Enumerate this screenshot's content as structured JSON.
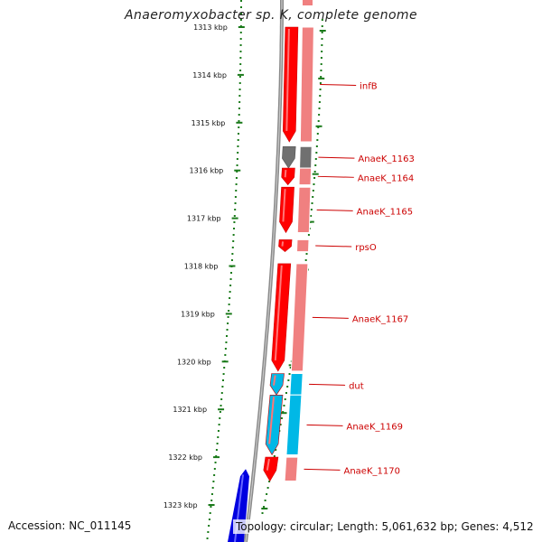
{
  "title": "Anaeromyxobacter sp. K, complete genome",
  "accession": "Accession: NC_011145",
  "topology": "Topology: circular; Length: 5,061,632 bp; Genes: 4,512",
  "colors": {
    "ruler_tick": "#1a7a1a",
    "backbone": "#8a8a8a",
    "gene_red": "#ff0000",
    "gene_dark_red": "#cc0000",
    "gene_pink": "#f08080",
    "gene_gray": "#707070",
    "gene_cyan": "#00b8e6",
    "gene_blue": "#0000e0",
    "label_red": "#cc0000"
  },
  "scale": {
    "unit": "kbp",
    "ticks": [
      "1313 kbp",
      "1314 kbp",
      "1315 kbp",
      "1316 kbp",
      "1317 kbp",
      "1318 kbp",
      "1319 kbp",
      "1320 kbp",
      "1321 kbp",
      "1322 kbp",
      "1323 kbp"
    ]
  },
  "genes": [
    {
      "name": "infB",
      "color": "red",
      "start_kbp": 1312.6,
      "end_kbp": 1315.4
    },
    {
      "name": "AnaeK_1163",
      "color": "gray",
      "start_kbp": 1315.5,
      "end_kbp": 1315.95
    },
    {
      "name": "AnaeK_1164",
      "color": "red",
      "start_kbp": 1315.95,
      "end_kbp": 1316.3
    },
    {
      "name": "AnaeK_1165",
      "color": "red",
      "start_kbp": 1316.35,
      "end_kbp": 1317.3
    },
    {
      "name": "rpsO",
      "color": "red",
      "start_kbp": 1317.45,
      "end_kbp": 1317.7
    },
    {
      "name": "AnaeK_1167",
      "color": "red",
      "start_kbp": 1317.95,
      "end_kbp": 1320.2
    },
    {
      "name": "dut",
      "color": "cyan",
      "start_kbp": 1320.25,
      "end_kbp": 1320.7
    },
    {
      "name": "AnaeK_1169",
      "color": "cyan",
      "start_kbp": 1320.7,
      "end_kbp": 1321.95
    },
    {
      "name": "AnaeK_1170",
      "color": "red",
      "start_kbp": 1322.0,
      "end_kbp": 1322.5
    }
  ]
}
